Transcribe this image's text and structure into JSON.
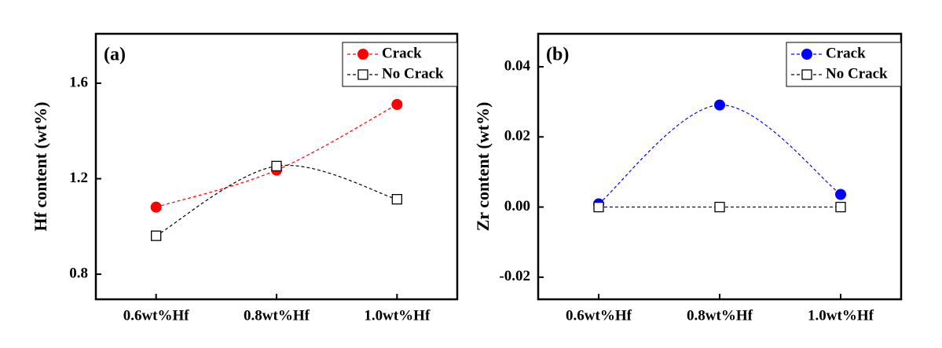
{
  "chart_data": [
    {
      "type": "line",
      "title": "(a)",
      "ylabel": "Hf content (wt%)",
      "categories": [
        "0.6wt%Hf",
        "0.8wt%Hf",
        "1.0wt%Hf"
      ],
      "series": [
        {
          "name": "Crack",
          "color": "#ff0000",
          "marker": "circle",
          "values": [
            1.081,
            1.236,
            1.511
          ]
        },
        {
          "name": "No Crack",
          "color": "#000000",
          "marker": "square",
          "values": [
            0.961,
            1.253,
            1.114
          ]
        }
      ],
      "ylim": [
        0.695,
        1.807
      ],
      "yticks": [
        0.8,
        1.2,
        1.6
      ],
      "legend": "upper right"
    },
    {
      "type": "line",
      "title": "(b)",
      "ylabel": "Zr content (wt%)",
      "categories": [
        "0.6wt%Hf",
        "0.8wt%Hf",
        "1.0wt%Hf"
      ],
      "series": [
        {
          "name": "Crack",
          "color": "#0000ff",
          "marker": "circle",
          "values": [
            0.0009,
            0.0291,
            0.0036
          ]
        },
        {
          "name": "No Crack",
          "color": "#000000",
          "marker": "square",
          "values": [
            0,
            0,
            0
          ]
        }
      ],
      "ylim": [
        -0.0263,
        0.0494
      ],
      "yticks": [
        -0.02,
        {
          "value": 0,
          "label": "0.00"
        },
        0.02,
        0.04
      ],
      "legend": "upper right"
    }
  ]
}
